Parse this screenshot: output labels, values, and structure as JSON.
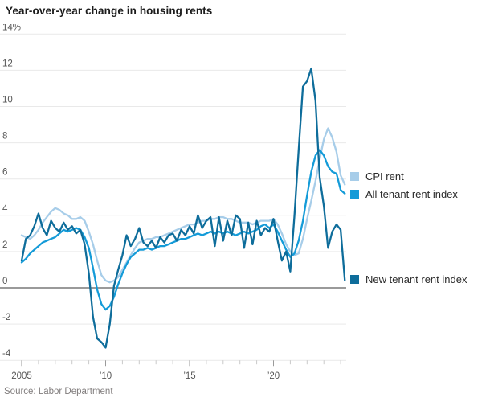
{
  "chart_data": {
    "type": "line",
    "title": "Year-over-year change in housing rents",
    "source": "Source: Labor Department",
    "xlabel": "",
    "ylabel": "",
    "ylim": [
      -4,
      14
    ],
    "xlim": [
      2005,
      2024.5
    ],
    "grid": "horizontal",
    "legend_position": "right-of-plot",
    "yticks": [
      {
        "v": -4,
        "label": "-4"
      },
      {
        "v": -2,
        "label": "-2"
      },
      {
        "v": 0,
        "label": "0"
      },
      {
        "v": 2,
        "label": "2"
      },
      {
        "v": 4,
        "label": "4"
      },
      {
        "v": 6,
        "label": "6"
      },
      {
        "v": 8,
        "label": "8"
      },
      {
        "v": 10,
        "label": "10"
      },
      {
        "v": 12,
        "label": "12"
      },
      {
        "v": 14,
        "label": "14%"
      }
    ],
    "xticks": [
      {
        "v": 2005,
        "label": "2005",
        "major": true
      },
      {
        "v": 2006,
        "label": "",
        "major": false
      },
      {
        "v": 2007,
        "label": "",
        "major": false
      },
      {
        "v": 2008,
        "label": "",
        "major": false
      },
      {
        "v": 2009,
        "label": "",
        "major": false
      },
      {
        "v": 2010,
        "label": "’10",
        "major": true
      },
      {
        "v": 2011,
        "label": "",
        "major": false
      },
      {
        "v": 2012,
        "label": "",
        "major": false
      },
      {
        "v": 2013,
        "label": "",
        "major": false
      },
      {
        "v": 2014,
        "label": "",
        "major": false
      },
      {
        "v": 2015,
        "label": "’15",
        "major": true
      },
      {
        "v": 2016,
        "label": "",
        "major": false
      },
      {
        "v": 2017,
        "label": "",
        "major": false
      },
      {
        "v": 2018,
        "label": "",
        "major": false
      },
      {
        "v": 2019,
        "label": "",
        "major": false
      },
      {
        "v": 2020,
        "label": "’20",
        "major": true
      },
      {
        "v": 2021,
        "label": "",
        "major": false
      },
      {
        "v": 2022,
        "label": "",
        "major": false
      },
      {
        "v": 2023,
        "label": "",
        "major": false
      },
      {
        "v": 2024,
        "label": "",
        "major": false
      }
    ],
    "x": [
      2005,
      2005.25,
      2005.5,
      2005.75,
      2006,
      2006.25,
      2006.5,
      2006.75,
      2007,
      2007.25,
      2007.5,
      2007.75,
      2008,
      2008.25,
      2008.5,
      2008.75,
      2009,
      2009.25,
      2009.5,
      2009.75,
      2010,
      2010.25,
      2010.5,
      2010.75,
      2011,
      2011.25,
      2011.5,
      2011.75,
      2012,
      2012.25,
      2012.5,
      2012.75,
      2013,
      2013.25,
      2013.5,
      2013.75,
      2014,
      2014.25,
      2014.5,
      2014.75,
      2015,
      2015.25,
      2015.5,
      2015.75,
      2016,
      2016.25,
      2016.5,
      2016.75,
      2017,
      2017.25,
      2017.5,
      2017.75,
      2018,
      2018.25,
      2018.5,
      2018.75,
      2019,
      2019.25,
      2019.5,
      2019.75,
      2020,
      2020.25,
      2020.5,
      2020.75,
      2021,
      2021.25,
      2021.5,
      2021.75,
      2022,
      2022.25,
      2022.5,
      2022.75,
      2023,
      2023.25,
      2023.5,
      2023.75,
      2024,
      2024.25
    ],
    "series": [
      {
        "name": "CPI rent",
        "color": "#a7cde9",
        "values": [
          2.9,
          2.8,
          2.7,
          2.9,
          3.2,
          3.6,
          3.9,
          4.2,
          4.4,
          4.3,
          4.1,
          4.0,
          3.8,
          3.8,
          3.9,
          3.7,
          3.1,
          2.4,
          1.5,
          0.7,
          0.4,
          0.3,
          0.4,
          0.6,
          1.0,
          1.4,
          1.8,
          2.2,
          2.5,
          2.6,
          2.7,
          2.7,
          2.8,
          2.8,
          2.9,
          3.0,
          3.1,
          3.2,
          3.3,
          3.4,
          3.5,
          3.5,
          3.6,
          3.7,
          3.7,
          3.8,
          3.8,
          3.9,
          3.9,
          3.8,
          3.8,
          3.7,
          3.6,
          3.6,
          3.6,
          3.5,
          3.6,
          3.7,
          3.7,
          3.7,
          3.8,
          3.5,
          3.0,
          2.4,
          2.0,
          1.8,
          1.9,
          2.7,
          3.8,
          4.8,
          5.9,
          7.1,
          8.2,
          8.8,
          8.3,
          7.5,
          6.2,
          5.7
        ]
      },
      {
        "name": "All tenant rent index",
        "color": "#149bd8",
        "values": [
          1.4,
          1.6,
          1.9,
          2.1,
          2.3,
          2.5,
          2.6,
          2.7,
          2.8,
          3.0,
          3.2,
          3.1,
          3.2,
          3.3,
          3.2,
          2.8,
          2.2,
          1.1,
          -0.1,
          -0.9,
          -1.2,
          -1.0,
          -0.5,
          0.2,
          0.8,
          1.3,
          1.7,
          1.9,
          2.1,
          2.1,
          2.2,
          2.1,
          2.2,
          2.3,
          2.3,
          2.4,
          2.5,
          2.6,
          2.7,
          2.7,
          2.8,
          2.9,
          3.0,
          2.9,
          3.0,
          3.1,
          3.0,
          3.1,
          3.0,
          3.1,
          3.0,
          2.9,
          3.0,
          3.1,
          3.0,
          3.1,
          3.2,
          3.4,
          3.5,
          3.3,
          3.5,
          3.1,
          2.6,
          2.1,
          1.7,
          1.9,
          2.6,
          3.7,
          5.1,
          6.4,
          7.3,
          7.6,
          7.3,
          6.7,
          6.4,
          6.3,
          5.4,
          5.2
        ]
      },
      {
        "name": "New tenant rent index",
        "color": "#0e6d9b",
        "values": [
          1.5,
          2.7,
          2.9,
          3.4,
          4.1,
          3.3,
          2.9,
          3.7,
          3.3,
          3.1,
          3.6,
          3.2,
          3.4,
          3.0,
          3.2,
          2.4,
          0.8,
          -1.6,
          -2.8,
          -3.0,
          -3.3,
          -2.0,
          0.1,
          1.0,
          1.8,
          2.9,
          2.3,
          2.7,
          3.3,
          2.5,
          2.3,
          2.6,
          2.2,
          2.8,
          2.5,
          2.9,
          3.0,
          2.6,
          3.2,
          2.9,
          3.4,
          3.0,
          4.0,
          3.3,
          3.7,
          3.9,
          2.3,
          3.9,
          2.6,
          3.7,
          2.9,
          4.0,
          3.8,
          2.2,
          3.6,
          2.4,
          3.7,
          2.9,
          3.3,
          3.1,
          3.8,
          2.6,
          1.5,
          2.0,
          0.9,
          4.0,
          7.6,
          11.1,
          11.4,
          12.1,
          10.3,
          6.1,
          4.5,
          2.2,
          3.1,
          3.5,
          3.2,
          0.4
        ]
      }
    ],
    "colors": {
      "grid": "#e9e9e9",
      "zero_line": "#9a9a9a",
      "axis_text": "#555555",
      "minor_tick": "#c9c9c9",
      "major_tick": "#9a9a9a"
    }
  }
}
